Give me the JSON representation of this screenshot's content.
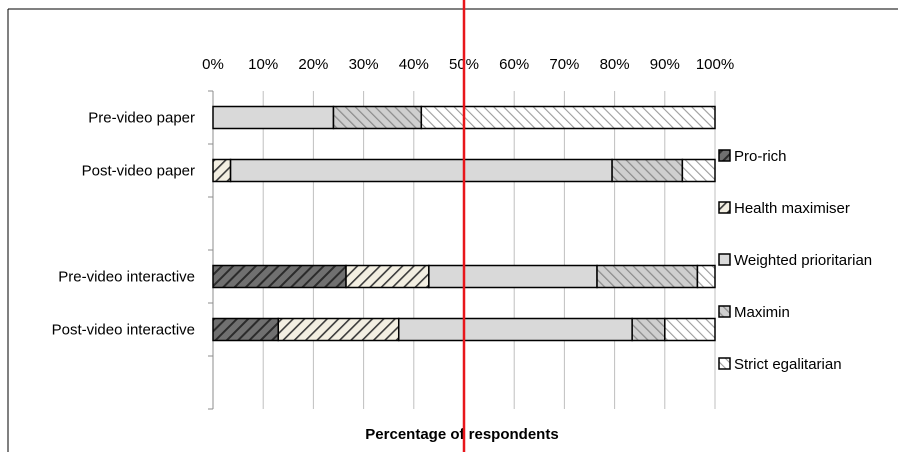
{
  "chart_data": {
    "type": "bar",
    "orientation": "horizontal",
    "stacked": true,
    "xlabel": "Percentage of respondents",
    "xlim": [
      0,
      100
    ],
    "x_ticks": [
      "0%",
      "10%",
      "20%",
      "30%",
      "40%",
      "50%",
      "60%",
      "70%",
      "80%",
      "90%",
      "100%"
    ],
    "x_axis_position": "top",
    "grid": true,
    "reference_line": {
      "value": 50,
      "color": "#e8161b"
    },
    "legend_placement": "right",
    "categories": [
      "Pre-video paper",
      "Post-video paper",
      "",
      "Pre-video interactive",
      "Post-video interactive",
      ""
    ],
    "series": [
      {
        "name": "Pro-rich",
        "pattern": "dark-hatch",
        "values": [
          0,
          0,
          0,
          26.5,
          13,
          0
        ]
      },
      {
        "name": "Health maximiser",
        "pattern": "light-hatch",
        "values": [
          0,
          3.5,
          0,
          16.5,
          24,
          0
        ]
      },
      {
        "name": "Weighted prioritarian",
        "pattern": "solid-grey",
        "values": [
          24,
          76,
          0,
          33.5,
          46.5,
          0
        ]
      },
      {
        "name": "Maximin",
        "pattern": "grey-hatch",
        "values": [
          17.5,
          14,
          0,
          20,
          6.5,
          0
        ]
      },
      {
        "name": "Strict egalitarian",
        "pattern": "white-hatch",
        "values": [
          58.5,
          6.5,
          0,
          3.5,
          10,
          0
        ]
      }
    ]
  }
}
